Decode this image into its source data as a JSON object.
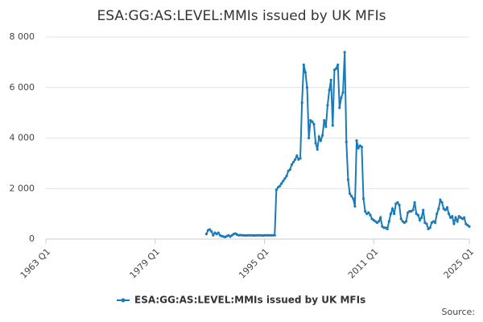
{
  "chart_data": {
    "type": "line",
    "title": "ESA:GG:AS:LEVEL:MMIs issued by UK MFIs",
    "source": "Source:",
    "xlim": [
      "1963 Q1",
      "2025 Q1"
    ],
    "xticks": [
      "1963 Q1",
      "1979 Q1",
      "1995 Q1",
      "2011 Q1",
      "2025 Q1"
    ],
    "ylim": [
      0,
      8000
    ],
    "yticks": [
      0,
      {
        "value": 2000,
        "label": "2 000"
      },
      {
        "value": 4000,
        "label": "4 000"
      },
      {
        "value": 6000,
        "label": "6 000"
      },
      {
        "value": 8000,
        "label": "8 000"
      }
    ],
    "grid": true,
    "legend": "bottom",
    "x": [
      "1986 Q3",
      "1986 Q4",
      "1987 Q1",
      "1987 Q2",
      "1987 Q3",
      "1987 Q4",
      "1988 Q1",
      "1988 Q2",
      "1988 Q3",
      "1988 Q4",
      "1989 Q1",
      "1989 Q2",
      "1989 Q3",
      "1989 Q4",
      "1990 Q1",
      "1990 Q2",
      "1990 Q3",
      "1990 Q4",
      "1991 Q1",
      "1991 Q2",
      "1991 Q3",
      "1991 Q4",
      "1992 Q1",
      "1992 Q2",
      "1992 Q3",
      "1992 Q4",
      "1993 Q1",
      "1993 Q2",
      "1993 Q3",
      "1993 Q4",
      "1994 Q1",
      "1994 Q2",
      "1994 Q3",
      "1994 Q4",
      "1995 Q1",
      "1995 Q2",
      "1995 Q3",
      "1995 Q4",
      "1996 Q1",
      "1996 Q2",
      "1996 Q3",
      "1996 Q4",
      "1997 Q1",
      "1997 Q2",
      "1997 Q3",
      "1997 Q4",
      "1998 Q1",
      "1998 Q2",
      "1998 Q3",
      "1998 Q4",
      "1999 Q1",
      "1999 Q2",
      "1999 Q3",
      "1999 Q4",
      "2000 Q1",
      "2000 Q2",
      "2000 Q3",
      "2000 Q4",
      "2001 Q1",
      "2001 Q2",
      "2001 Q3",
      "2001 Q4",
      "2002 Q1",
      "2002 Q2",
      "2002 Q3",
      "2002 Q4",
      "2003 Q1",
      "2003 Q2",
      "2003 Q3",
      "2003 Q4",
      "2004 Q1",
      "2004 Q2",
      "2004 Q3",
      "2004 Q4",
      "2005 Q1",
      "2005 Q2",
      "2005 Q3",
      "2005 Q4",
      "2006 Q1",
      "2006 Q2",
      "2006 Q3",
      "2006 Q4",
      "2007 Q1",
      "2007 Q2",
      "2007 Q3",
      "2007 Q4",
      "2008 Q1",
      "2008 Q2",
      "2008 Q3",
      "2008 Q4",
      "2009 Q1",
      "2009 Q2",
      "2009 Q3",
      "2009 Q4",
      "2010 Q1",
      "2010 Q2",
      "2010 Q3",
      "2010 Q4",
      "2011 Q1",
      "2011 Q2",
      "2011 Q3",
      "2011 Q4",
      "2012 Q1",
      "2012 Q2",
      "2012 Q3",
      "2012 Q4",
      "2013 Q1",
      "2013 Q2",
      "2013 Q3",
      "2013 Q4",
      "2014 Q1",
      "2014 Q2",
      "2014 Q3",
      "2014 Q4",
      "2015 Q1",
      "2015 Q2",
      "2015 Q3",
      "2015 Q4",
      "2016 Q1",
      "2016 Q2",
      "2016 Q3",
      "2016 Q4",
      "2017 Q1",
      "2017 Q2",
      "2017 Q3",
      "2017 Q4",
      "2018 Q1",
      "2018 Q2",
      "2018 Q3",
      "2018 Q4",
      "2019 Q1",
      "2019 Q2",
      "2019 Q3",
      "2019 Q4",
      "2020 Q1",
      "2020 Q2",
      "2020 Q3",
      "2020 Q4",
      "2021 Q1",
      "2021 Q2",
      "2021 Q3",
      "2021 Q4",
      "2022 Q1",
      "2022 Q2",
      "2022 Q3",
      "2022 Q4",
      "2023 Q1",
      "2023 Q2",
      "2023 Q3",
      "2023 Q4",
      "2024 Q1",
      "2024 Q2",
      "2024 Q3",
      "2024 Q4",
      "2025 Q1"
    ],
    "series": [
      {
        "name": "ESA:GG:AS:LEVEL:MMIs issued by UK MFIs",
        "color": "#1a7bb9",
        "values": [
          200,
          350,
          380,
          300,
          150,
          250,
          200,
          250,
          150,
          120,
          100,
          80,
          120,
          150,
          100,
          150,
          200,
          220,
          180,
          150,
          160,
          150,
          150,
          140,
          150,
          150,
          150,
          150,
          140,
          150,
          150,
          150,
          150,
          140,
          150,
          150,
          150,
          150,
          150,
          150,
          150,
          1950,
          2050,
          2100,
          2200,
          2300,
          2400,
          2500,
          2700,
          2750,
          2950,
          3050,
          3150,
          3300,
          3150,
          3200,
          5400,
          6900,
          6600,
          6000,
          4000,
          4700,
          4650,
          4550,
          3800,
          3550,
          4050,
          3900,
          4100,
          4700,
          4450,
          5300,
          5900,
          6300,
          4500,
          6700,
          6750,
          6900,
          5200,
          5600,
          5800,
          7400,
          3850,
          2350,
          1800,
          1700,
          1600,
          1300,
          3900,
          3600,
          3700,
          3650,
          1600,
          1100,
          1000,
          1050,
          950,
          800,
          750,
          700,
          650,
          700,
          850,
          500,
          450,
          450,
          400,
          700,
          1000,
          1200,
          1000,
          1400,
          1450,
          1350,
          800,
          700,
          650,
          700,
          1050,
          1100,
          1100,
          1150,
          1450,
          1000,
          950,
          750,
          850,
          1150,
          650,
          600,
          400,
          450,
          650,
          700,
          650,
          1000,
          1200,
          1550,
          1450,
          1200,
          1150,
          1250,
          1000,
          850,
          900,
          600,
          850,
          700,
          900,
          850,
          800,
          850,
          600,
          550,
          500
        ]
      }
    ]
  }
}
